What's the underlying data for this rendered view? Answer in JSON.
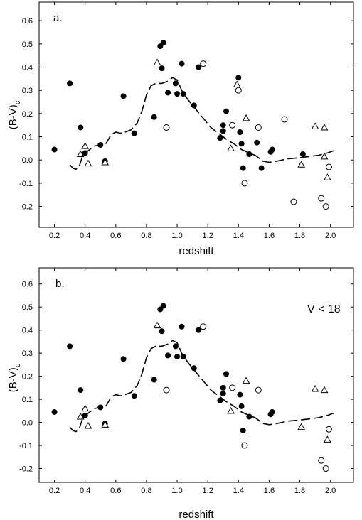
{
  "chart_data": [
    {
      "type": "scatter",
      "panel_label": "a.",
      "annotation": "",
      "xlabel": "redshift",
      "ylabel_main": "(B-V)",
      "ylabel_sub": "c",
      "xlim": [
        0.1,
        2.15
      ],
      "ylim": [
        -0.29,
        0.68
      ],
      "x_ticks": [
        "0.2",
        "0.4",
        "0.6",
        "0.8",
        "1.0",
        "1.2",
        "1.4",
        "1.6",
        "1.8",
        "2.0"
      ],
      "y_ticks": [
        "0.6",
        "0.5",
        "0.4",
        "0.3",
        "0.2",
        "0.1",
        "0.0",
        "-0.1",
        "-0.2"
      ],
      "grid": false,
      "series": [
        {
          "marker": "filled-circle",
          "points": [
            [
              0.2,
              0.045
            ],
            [
              0.3,
              0.33
            ],
            [
              0.37,
              0.14
            ],
            [
              0.4,
              0.03
            ],
            [
              0.5,
              0.065
            ],
            [
              0.53,
              -0.005
            ],
            [
              0.65,
              0.275
            ],
            [
              0.72,
              0.115
            ],
            [
              0.85,
              0.185
            ],
            [
              0.89,
              0.49
            ],
            [
              0.91,
              0.505
            ],
            [
              0.9,
              0.395
            ],
            [
              0.94,
              0.29
            ],
            [
              0.99,
              0.33
            ],
            [
              1.0,
              0.285
            ],
            [
              1.03,
              0.415
            ],
            [
              1.04,
              0.285
            ],
            [
              1.11,
              0.235
            ],
            [
              1.14,
              0.4
            ],
            [
              1.28,
              0.095
            ],
            [
              1.3,
              0.15
            ],
            [
              1.3,
              0.125
            ],
            [
              1.32,
              0.21
            ],
            [
              1.4,
              0.355
            ],
            [
              1.41,
              0.12
            ],
            [
              1.42,
              0.07
            ],
            [
              1.43,
              -0.035
            ],
            [
              1.47,
              0.025
            ],
            [
              1.52,
              0.075
            ],
            [
              1.55,
              -0.035
            ],
            [
              1.61,
              0.035
            ],
            [
              1.62,
              0.045
            ],
            [
              1.82,
              0.025
            ]
          ]
        },
        {
          "marker": "open-circle",
          "points": [
            [
              0.93,
              0.14
            ],
            [
              1.17,
              0.415
            ],
            [
              1.36,
              0.15
            ],
            [
              1.4,
              0.3
            ],
            [
              1.44,
              -0.1
            ],
            [
              1.53,
              0.14
            ],
            [
              1.7,
              0.175
            ],
            [
              1.76,
              -0.18
            ],
            [
              1.94,
              -0.165
            ],
            [
              1.97,
              -0.2
            ],
            [
              1.99,
              -0.03
            ]
          ]
        },
        {
          "marker": "open-triangle",
          "points": [
            [
              0.37,
              0.025
            ],
            [
              0.4,
              0.06
            ],
            [
              0.42,
              -0.015
            ],
            [
              0.53,
              -0.01
            ],
            [
              0.87,
              0.42
            ],
            [
              1.35,
              0.05
            ],
            [
              1.39,
              0.325
            ],
            [
              1.45,
              0.18
            ],
            [
              1.81,
              -0.02
            ],
            [
              1.9,
              0.145
            ],
            [
              1.96,
              0.14
            ],
            [
              1.96,
              0.015
            ],
            [
              1.98,
              -0.075
            ]
          ]
        }
      ],
      "model_curve": {
        "style": "dashed",
        "points": [
          [
            0.3,
            -0.02
          ],
          [
            0.32,
            -0.035
          ],
          [
            0.34,
            -0.04
          ],
          [
            0.36,
            -0.03
          ],
          [
            0.38,
            0.01
          ],
          [
            0.4,
            0.03
          ],
          [
            0.43,
            0.045
          ],
          [
            0.46,
            0.06
          ],
          [
            0.5,
            0.065
          ],
          [
            0.52,
            0.06
          ],
          [
            0.54,
            0.075
          ],
          [
            0.57,
            0.11
          ],
          [
            0.6,
            0.12
          ],
          [
            0.63,
            0.115
          ],
          [
            0.66,
            0.12
          ],
          [
            0.7,
            0.13
          ],
          [
            0.74,
            0.16
          ],
          [
            0.77,
            0.21
          ],
          [
            0.8,
            0.28
          ],
          [
            0.83,
            0.32
          ],
          [
            0.86,
            0.33
          ],
          [
            0.9,
            0.33
          ],
          [
            0.94,
            0.34
          ],
          [
            0.97,
            0.355
          ],
          [
            1.0,
            0.345
          ],
          [
            1.03,
            0.3
          ],
          [
            1.07,
            0.26
          ],
          [
            1.12,
            0.22
          ],
          [
            1.17,
            0.18
          ],
          [
            1.22,
            0.14
          ],
          [
            1.27,
            0.115
          ],
          [
            1.32,
            0.09
          ],
          [
            1.37,
            0.07
          ],
          [
            1.42,
            0.045
          ],
          [
            1.47,
            0.03
          ],
          [
            1.51,
            0.02
          ],
          [
            1.53,
            0.01
          ],
          [
            1.56,
            -0.005
          ],
          [
            1.6,
            -0.01
          ],
          [
            1.65,
            -0.005
          ],
          [
            1.72,
            0.005
          ],
          [
            1.8,
            0.01
          ],
          [
            1.86,
            0.015
          ],
          [
            1.92,
            0.02
          ],
          [
            1.98,
            0.03
          ],
          [
            2.02,
            0.04
          ]
        ]
      }
    },
    {
      "type": "scatter",
      "panel_label": "b.",
      "annotation": "V < 18",
      "xlabel": "redshift",
      "ylabel_main": "(B-V)",
      "ylabel_sub": "c",
      "xlim": [
        0.1,
        2.15
      ],
      "ylim": [
        -0.26,
        0.67
      ],
      "x_ticks": [
        "0.2",
        "0.4",
        "0.6",
        "0.8",
        "1.0",
        "1.2",
        "1.4",
        "1.6",
        "1.8",
        "2.0"
      ],
      "y_ticks": [
        "0.6",
        "0.5",
        "0.4",
        "0.3",
        "0.2",
        "0.1",
        "0.0",
        "-0.1",
        "-0.2"
      ],
      "grid": false,
      "series": [
        {
          "marker": "filled-circle",
          "points": [
            [
              0.2,
              0.045
            ],
            [
              0.3,
              0.33
            ],
            [
              0.37,
              0.14
            ],
            [
              0.4,
              0.03
            ],
            [
              0.5,
              0.065
            ],
            [
              0.53,
              -0.005
            ],
            [
              0.65,
              0.275
            ],
            [
              0.72,
              0.115
            ],
            [
              0.85,
              0.185
            ],
            [
              0.89,
              0.49
            ],
            [
              0.91,
              0.505
            ],
            [
              0.9,
              0.395
            ],
            [
              0.94,
              0.29
            ],
            [
              0.99,
              0.33
            ],
            [
              1.0,
              0.285
            ],
            [
              1.03,
              0.415
            ],
            [
              1.04,
              0.285
            ],
            [
              1.11,
              0.235
            ],
            [
              1.14,
              0.4
            ],
            [
              1.28,
              0.095
            ],
            [
              1.3,
              0.15
            ],
            [
              1.3,
              0.125
            ],
            [
              1.32,
              0.21
            ],
            [
              1.41,
              0.12
            ],
            [
              1.42,
              0.07
            ],
            [
              1.43,
              -0.035
            ],
            [
              1.47,
              0.025
            ],
            [
              1.61,
              0.035
            ],
            [
              1.62,
              0.045
            ]
          ]
        },
        {
          "marker": "open-circle",
          "points": [
            [
              0.93,
              0.14
            ],
            [
              1.17,
              0.415
            ],
            [
              1.36,
              0.15
            ],
            [
              1.44,
              -0.1
            ],
            [
              1.53,
              0.14
            ],
            [
              1.94,
              -0.165
            ],
            [
              1.97,
              -0.2
            ],
            [
              1.99,
              -0.03
            ]
          ]
        },
        {
          "marker": "open-triangle",
          "points": [
            [
              0.37,
              0.025
            ],
            [
              0.4,
              0.06
            ],
            [
              0.42,
              -0.015
            ],
            [
              0.53,
              -0.01
            ],
            [
              0.87,
              0.42
            ],
            [
              1.35,
              0.05
            ],
            [
              1.45,
              0.18
            ],
            [
              1.81,
              -0.02
            ],
            [
              1.9,
              0.145
            ],
            [
              1.96,
              0.14
            ],
            [
              1.98,
              -0.075
            ]
          ]
        }
      ],
      "model_curve": {
        "style": "dashed",
        "points": [
          [
            0.3,
            -0.02
          ],
          [
            0.32,
            -0.035
          ],
          [
            0.34,
            -0.04
          ],
          [
            0.36,
            -0.03
          ],
          [
            0.38,
            0.01
          ],
          [
            0.4,
            0.03
          ],
          [
            0.43,
            0.045
          ],
          [
            0.46,
            0.06
          ],
          [
            0.5,
            0.065
          ],
          [
            0.52,
            0.06
          ],
          [
            0.54,
            0.075
          ],
          [
            0.57,
            0.11
          ],
          [
            0.6,
            0.12
          ],
          [
            0.63,
            0.115
          ],
          [
            0.66,
            0.12
          ],
          [
            0.7,
            0.13
          ],
          [
            0.74,
            0.16
          ],
          [
            0.77,
            0.21
          ],
          [
            0.8,
            0.28
          ],
          [
            0.83,
            0.32
          ],
          [
            0.86,
            0.33
          ],
          [
            0.9,
            0.33
          ],
          [
            0.94,
            0.34
          ],
          [
            0.97,
            0.355
          ],
          [
            1.0,
            0.345
          ],
          [
            1.03,
            0.3
          ],
          [
            1.07,
            0.26
          ],
          [
            1.12,
            0.22
          ],
          [
            1.17,
            0.18
          ],
          [
            1.22,
            0.14
          ],
          [
            1.27,
            0.115
          ],
          [
            1.32,
            0.09
          ],
          [
            1.37,
            0.07
          ],
          [
            1.42,
            0.045
          ],
          [
            1.47,
            0.03
          ],
          [
            1.51,
            0.02
          ],
          [
            1.53,
            0.01
          ],
          [
            1.56,
            -0.005
          ],
          [
            1.6,
            -0.01
          ],
          [
            1.65,
            -0.005
          ],
          [
            1.72,
            0.005
          ],
          [
            1.8,
            0.01
          ],
          [
            1.86,
            0.015
          ],
          [
            1.92,
            0.02
          ],
          [
            1.98,
            0.03
          ],
          [
            2.02,
            0.04
          ]
        ]
      }
    }
  ]
}
